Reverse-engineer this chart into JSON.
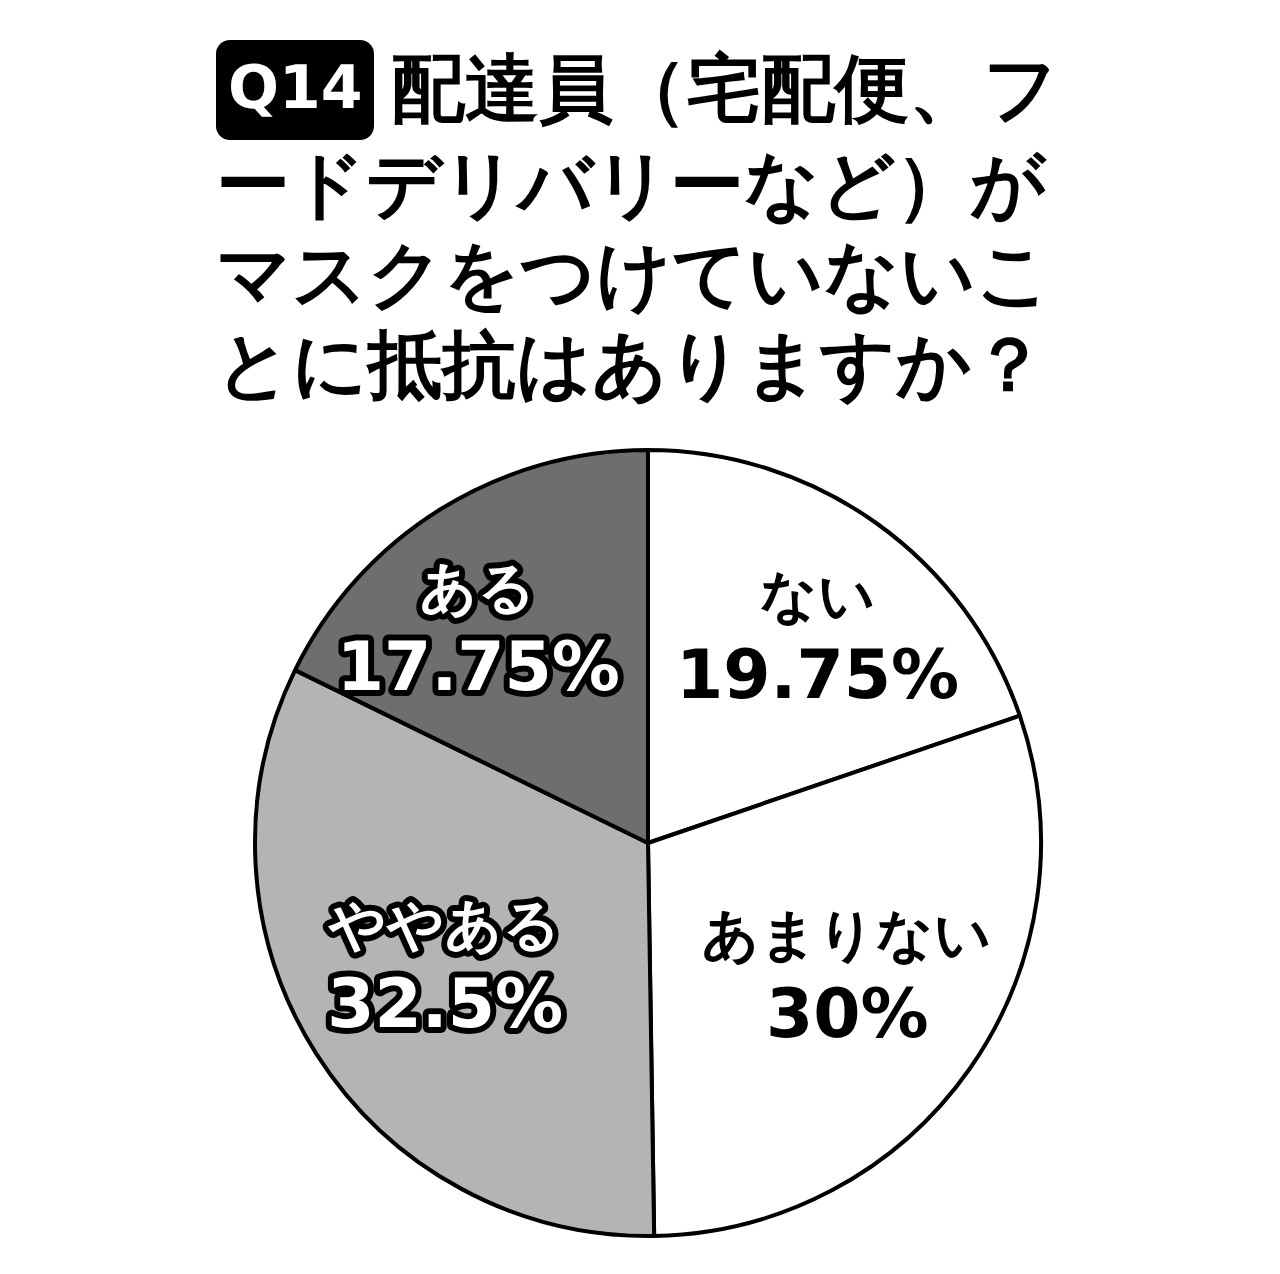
{
  "chart_data": {
    "type": "pie",
    "title": "Q14 配達員（宅配便、フードデリバリーなど）がマスクをつけていないことに抵抗はありますか？",
    "categories": [
      "ない",
      "あまりない",
      "ややある",
      "ある"
    ],
    "values": [
      19.75,
      30,
      32.5,
      17.75
    ],
    "colors": [
      "#ffffff",
      "#ffffff",
      "#b4b4b4",
      "#6e6e6e"
    ],
    "value_labels": [
      "19.75%",
      "30%",
      "32.5%",
      "17.75%"
    ]
  }
}
